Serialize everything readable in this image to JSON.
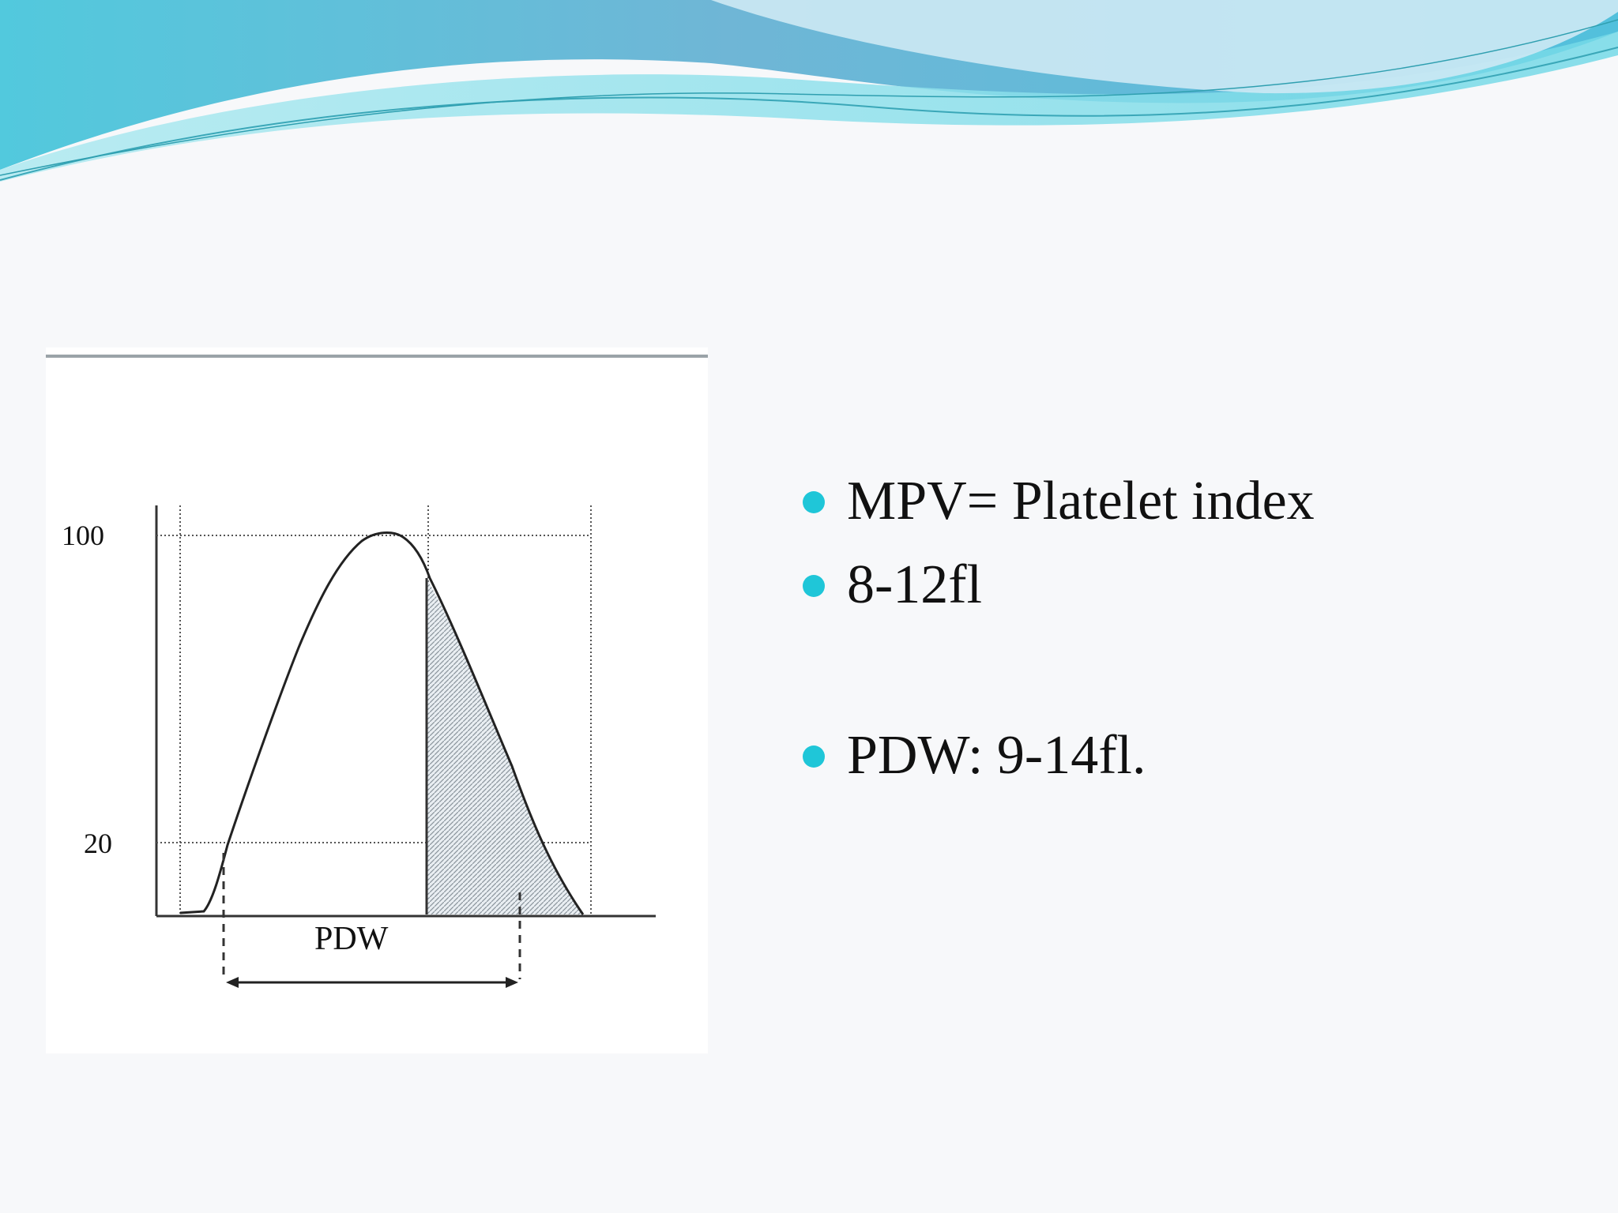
{
  "colors": {
    "wave_dark": "#5ab0d2",
    "wave_light": "#8ad9e6",
    "bullet": "#1fc6d8",
    "text": "#111111"
  },
  "figure": {
    "y_labels": {
      "top": "100",
      "bottom": "20"
    },
    "width_label": "PDW"
  },
  "bullets": [
    {
      "text": "MPV= Platelet index"
    },
    {
      "text": "8-12fl"
    },
    {
      "text": "PDW: 9-14fl."
    }
  ]
}
